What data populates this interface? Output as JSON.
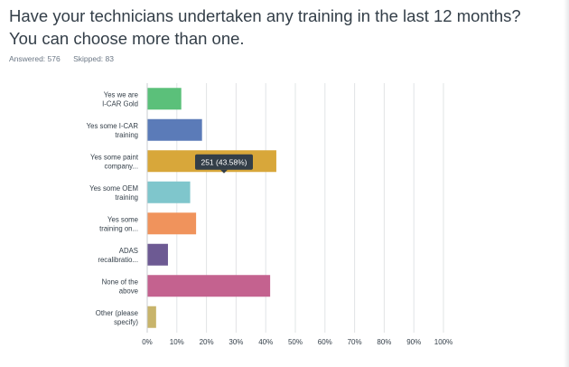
{
  "question": {
    "title": "Have your technicians undertaken any training in the last 12 months?  You can choose more than one."
  },
  "stats": {
    "answered": "Answered: 576",
    "skipped": "Skipped: 83"
  },
  "tooltip": {
    "text": "251 (43.58%)",
    "category_index": 2
  },
  "chart_data": {
    "type": "bar",
    "orientation": "horizontal",
    "categories": [
      [
        "Yes we are",
        "I-CAR Gold"
      ],
      [
        "Yes some I-CAR",
        "training"
      ],
      [
        "Yes some paint",
        "company..."
      ],
      [
        "Yes some OEM",
        "training"
      ],
      [
        "Yes some",
        "training on..."
      ],
      [
        "ADAS",
        "recalibratio..."
      ],
      [
        "None of the",
        "above"
      ],
      [
        "Other (please",
        "specify)"
      ]
    ],
    "values": [
      11.5,
      18.5,
      43.58,
      14.5,
      16.5,
      7.0,
      41.5,
      3.0
    ],
    "colors": [
      "#5bc07a",
      "#5b7bb8",
      "#d8a73a",
      "#7fc6cc",
      "#f0935c",
      "#6d5a93",
      "#c4628f",
      "#c8b46b"
    ],
    "xlim": [
      0,
      100
    ],
    "xticks": [
      "0%",
      "10%",
      "20%",
      "30%",
      "40%",
      "50%",
      "60%",
      "70%",
      "80%",
      "90%",
      "100%"
    ],
    "grid": true,
    "xlabel": "",
    "ylabel": ""
  }
}
